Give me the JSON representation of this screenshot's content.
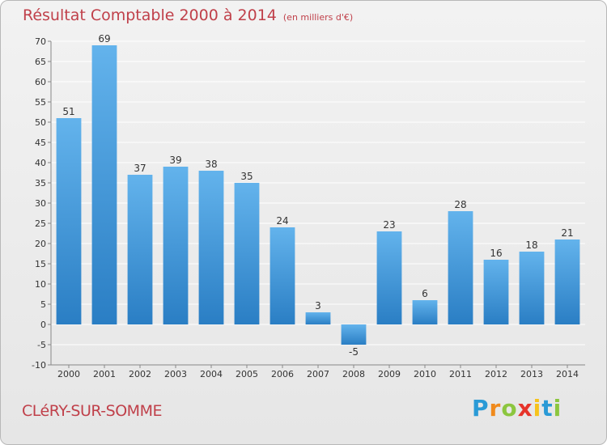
{
  "header": {
    "title": "Résultat Comptable 2000 à 2014",
    "unit": "(en milliers d'€)"
  },
  "footer": {
    "city": "CLéRY-SUR-SOMME",
    "brand_letters": [
      "P",
      "r",
      "o",
      "x",
      "i",
      "t",
      "i"
    ],
    "brand_colors": [
      "#2a9ad6",
      "#f08a1c",
      "#8cc63f",
      "#e6332a",
      "#f6c31b",
      "#2a9ad6",
      "#8cc63f"
    ]
  },
  "colors": {
    "title": "#c0404a",
    "bar_light": "#63b3ec",
    "bar_dark": "#2a7ec4",
    "grid": "#ffffff",
    "axis": "#888888"
  },
  "chart_data": {
    "type": "bar",
    "title": "Résultat Comptable 2000 à 2014",
    "xlabel": "",
    "ylabel": "",
    "ylim": [
      -10,
      70
    ],
    "yticks": [
      -10,
      -5,
      0,
      5,
      10,
      15,
      20,
      25,
      30,
      35,
      40,
      45,
      50,
      55,
      60,
      65,
      70
    ],
    "categories": [
      "2000",
      "2001",
      "2002",
      "2003",
      "2004",
      "2005",
      "2006",
      "2007",
      "2008",
      "2009",
      "2010",
      "2011",
      "2012",
      "2013",
      "2014"
    ],
    "values": [
      51,
      69,
      37,
      39,
      38,
      35,
      24,
      3,
      -5,
      23,
      6,
      28,
      16,
      18,
      21
    ],
    "grid": true
  }
}
